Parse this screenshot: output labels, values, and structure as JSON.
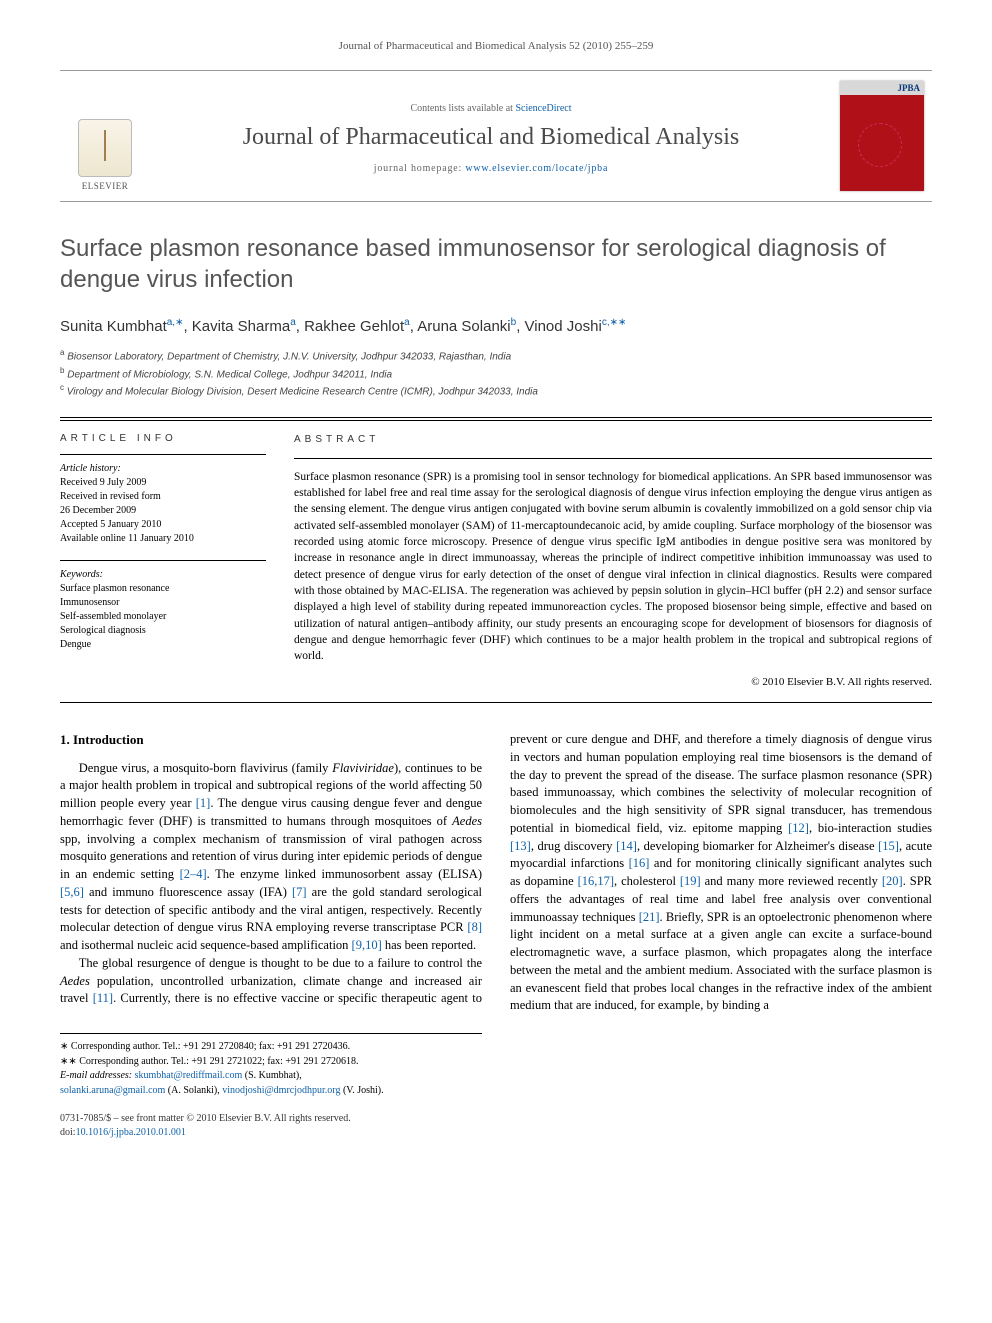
{
  "running_head": "Journal of Pharmaceutical and Biomedical Analysis 52 (2010) 255–259",
  "banner": {
    "contents_prefix": "Contents lists available at ",
    "contents_link": "ScienceDirect",
    "journal_name": "Journal of Pharmaceutical and Biomedical Analysis",
    "homepage_prefix": "journal homepage: ",
    "homepage_url": "www.elsevier.com/locate/jpba",
    "publisher_word": "ELSEVIER",
    "cover_code": "JPBA"
  },
  "title": "Surface plasmon resonance based immunosensor for serological diagnosis of dengue virus infection",
  "authors_html": "Sunita Kumbhat<sup>a,∗</sup>, Kavita Sharma<sup>a</sup>, Rakhee Gehlot<sup>a</sup>, Aruna Solanki<sup>b</sup>, Vinod Joshi<sup>c,∗∗</sup>",
  "affiliations": {
    "a": "Biosensor Laboratory, Department of Chemistry, J.N.V. University, Jodhpur 342033, Rajasthan, India",
    "b": "Department of Microbiology, S.N. Medical College, Jodhpur 342011, India",
    "c": "Virology and Molecular Biology Division, Desert Medicine Research Centre (ICMR), Jodhpur 342033, India"
  },
  "article_info": {
    "label": "ARTICLE INFO",
    "history_title": "Article history:",
    "history_lines": [
      "Received 9 July 2009",
      "Received in revised form",
      "26 December 2009",
      "Accepted 5 January 2010",
      "Available online 11 January 2010"
    ],
    "keywords_title": "Keywords:",
    "keywords": [
      "Surface plasmon resonance",
      "Immunosensor",
      "Self-assembled monolayer",
      "Serological diagnosis",
      "Dengue"
    ]
  },
  "abstract": {
    "label": "ABSTRACT",
    "text": "Surface plasmon resonance (SPR) is a promising tool in sensor technology for biomedical applications. An SPR based immunosensor was established for label free and real time assay for the serological diagnosis of dengue virus infection employing the dengue virus antigen as the sensing element. The dengue virus antigen conjugated with bovine serum albumin is covalently immobilized on a gold sensor chip via activated self-assembled monolayer (SAM) of 11-mercaptoundecanoic acid, by amide coupling. Surface morphology of the biosensor was recorded using atomic force microscopy. Presence of dengue virus specific IgM antibodies in dengue positive sera was monitored by increase in resonance angle in direct immunoassay, whereas the principle of indirect competitive inhibition immunoassay was used to detect presence of dengue virus for early detection of the onset of dengue viral infection in clinical diagnostics. Results were compared with those obtained by MAC-ELISA. The regeneration was achieved by pepsin solution in glycin–HCl buffer (pH 2.2) and sensor surface displayed a high level of stability during repeated immunoreaction cycles. The proposed biosensor being simple, effective and based on utilization of natural antigen–antibody affinity, our study presents an encouraging scope for development of biosensors for diagnosis of dengue and dengue hemorrhagic fever (DHF) which continues to be a major health problem in the tropical and subtropical regions of world.",
    "copyright": "© 2010 Elsevier B.V. All rights reserved."
  },
  "intro": {
    "heading": "1.  Introduction",
    "para1": "Dengue virus, a mosquito-born flavivirus (family Flaviviridae), continues to be a major health problem in tropical and subtropical regions of the world affecting 50 million people every year [1]. The dengue virus causing dengue fever and dengue hemorrhagic fever (DHF) is transmitted to humans through mosquitoes of Aedes spp, involving a complex mechanism of transmission of viral pathogen across mosquito generations and retention of virus during inter epidemic periods of dengue in an endemic setting [2–4]. The enzyme linked immunosorbent assay (ELISA) [5,6] and immuno fluorescence assay (IFA) [7] are the gold standard serological tests for detection of specific antibody and the viral antigen, respectively. Recently molecular detection of dengue virus RNA employing reverse transcriptase PCR [8] and isothermal nucleic acid sequence-based amplification [9,10] has been reported.",
    "para2": "The global resurgence of dengue is thought to be due to a failure to control the Aedes population, uncontrolled urbanization, climate change and increased air travel [11]. Currently, there is no effective vaccine or specific therapeutic agent to prevent or cure dengue and DHF, and therefore a timely diagnosis of dengue virus in vectors and human population employing real time biosensors is the demand of the day to prevent the spread of the disease. The surface plasmon resonance (SPR) based immunoassay, which combines the selectivity of molecular recognition of biomolecules and the high sensitivity of SPR signal transducer, has tremendous potential in biomedical field, viz. epitome mapping [12], bio-interaction studies [13], drug discovery [14], developing biomarker for Alzheimer's disease [15], acute myocardial infarctions [16] and for monitoring clinically significant analytes such as dopamine [16,17], cholesterol [19] and many more reviewed recently [20]. SPR offers the advantages of real time and label free analysis over conventional immunoassay techniques [21]. Briefly, SPR is an optoelectronic phenomenon where light incident on a metal surface at a given angle can excite a surface-bound electromagnetic wave, a surface plasmon, which propagates along the interface between the metal and the ambient medium. Associated with the surface plasmon is an evanescent field that probes local changes in the refractive index of the ambient medium that are induced, for example, by binding a"
  },
  "footnotes": {
    "star": "Corresponding author. Tel.: +91 291 2720840; fax: +91 291 2720436.",
    "dstar": "Corresponding author. Tel.: +91 291 2721022; fax: +91 291 2720618.",
    "emails_label": "E-mail addresses:",
    "email1": "skumbhat@rediffmail.com",
    "email1_who": "(S. Kumbhat),",
    "email2": "solanki.aruna@gmail.com",
    "email2_who": "(A. Solanki),",
    "email3": "vinodjoshi@dmrcjodhpur.org",
    "email3_who": "(V. Joshi)."
  },
  "doi": {
    "line1": "0731-7085/$ – see front matter © 2010 Elsevier B.V. All rights reserved.",
    "line2_prefix": "doi:",
    "line2_link": "10.1016/j.jpba.2010.01.001"
  },
  "ref_links": [
    "[1]",
    "[2–4]",
    "[5,6]",
    "[7]",
    "[8]",
    "[9,10]",
    "[11]",
    "[12]",
    "[13]",
    "[14]",
    "[15]",
    "[16]",
    "[16,17]",
    "[19]",
    "[20]",
    "[21]"
  ],
  "colors": {
    "link": "#1060a8",
    "cover": "#b01119",
    "title_gray": "#555555"
  }
}
